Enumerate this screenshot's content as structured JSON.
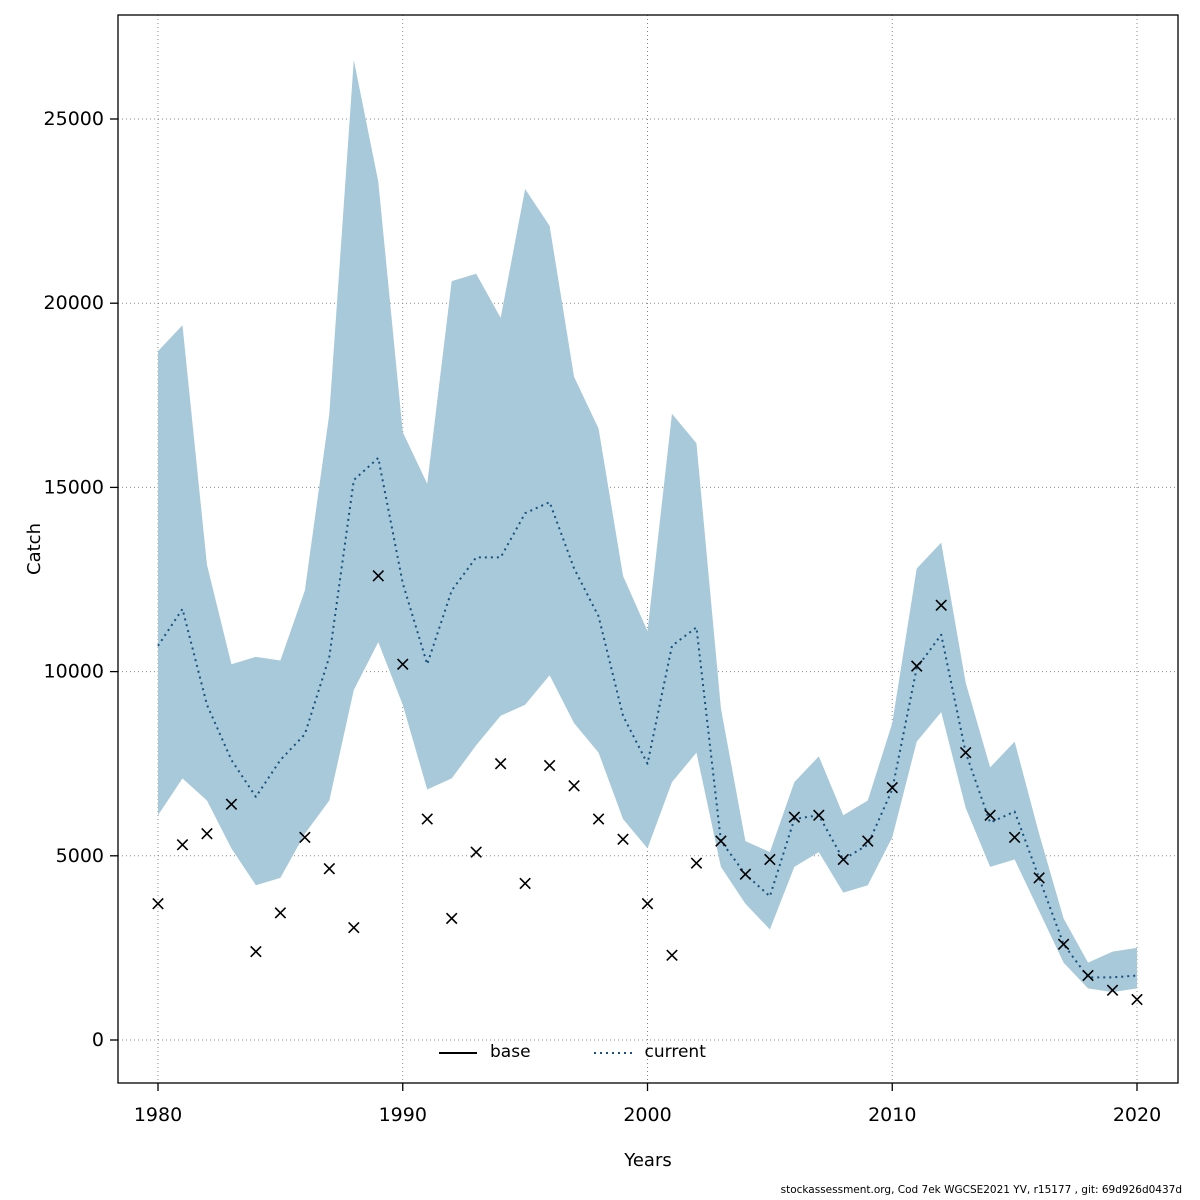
{
  "footer": {
    "text": "stockassessment.org, Cod 7ek WGCSE2021 YV, r15177 , git: 69d926d0437d"
  },
  "chart_data": {
    "type": "line",
    "title": "",
    "xlabel": "Years",
    "ylabel": "Catch",
    "xlim": [
      1978.4,
      2021.7
    ],
    "ylim": [
      -1150,
      27800
    ],
    "grid": "dotted",
    "legend_position": "bottom-center-inside",
    "x_ticks": [
      1980,
      1990,
      2000,
      2010,
      2020
    ],
    "y_ticks": [
      0,
      5000,
      10000,
      15000,
      20000,
      25000
    ],
    "colors": {
      "band": "#a7c9da",
      "current_line": "#16527f",
      "base_line": "#000000",
      "grid": "#8a8a8a",
      "marker": "#000000",
      "frame": "#000000"
    },
    "legend": [
      {
        "label": "base",
        "style": "solid",
        "color": "#000000"
      },
      {
        "label": "current",
        "style": "dotted",
        "color": "#16527f"
      }
    ],
    "years": [
      1980,
      1981,
      1982,
      1983,
      1984,
      1985,
      1986,
      1987,
      1988,
      1989,
      1990,
      1991,
      1992,
      1993,
      1994,
      1995,
      1996,
      1997,
      1998,
      1999,
      2000,
      2001,
      2002,
      2003,
      2004,
      2005,
      2006,
      2007,
      2008,
      2009,
      2010,
      2011,
      2012,
      2013,
      2014,
      2015,
      2016,
      2017,
      2018,
      2019,
      2020
    ],
    "series": [
      {
        "name": "current",
        "style": "dotted",
        "values": [
          10700,
          11700,
          9100,
          7600,
          6600,
          7600,
          8300,
          10400,
          15200,
          15800,
          12400,
          10200,
          12200,
          13100,
          13100,
          14300,
          14600,
          12800,
          11500,
          8800,
          7500,
          10700,
          11200,
          5400,
          4500,
          3900,
          6000,
          6100,
          4900,
          5300,
          6800,
          10100,
          11000,
          7800,
          5900,
          6200,
          4400,
          2600,
          1700,
          1700,
          1750
        ]
      }
    ],
    "band": {
      "name": "current-confidence-interval",
      "lower": [
        6100,
        7100,
        6500,
        5200,
        4200,
        4400,
        5600,
        6500,
        9500,
        10800,
        9100,
        6800,
        7100,
        8000,
        8800,
        9100,
        9900,
        8600,
        7800,
        6000,
        5200,
        7000,
        7800,
        4700,
        3700,
        3000,
        4700,
        5100,
        4000,
        4200,
        5500,
        8100,
        8900,
        6300,
        4700,
        4900,
        3500,
        2100,
        1400,
        1300,
        1400
      ],
      "upper": [
        18700,
        19400,
        12900,
        10200,
        10400,
        10300,
        12200,
        17000,
        26600,
        23300,
        16500,
        15100,
        20600,
        20800,
        19600,
        23100,
        22100,
        18000,
        16600,
        12600,
        11100,
        17000,
        16200,
        9000,
        5400,
        5100,
        7000,
        7700,
        6100,
        6500,
        8600,
        12800,
        13500,
        9700,
        7400,
        8100,
        5600,
        3300,
        2100,
        2400,
        2500
      ]
    },
    "observations": {
      "name": "observed-catch",
      "marker": "x",
      "values": [
        3700,
        5300,
        5600,
        6400,
        2400,
        3450,
        5500,
        4650,
        3050,
        12600,
        10200,
        6000,
        3300,
        5100,
        7500,
        4250,
        7450,
        6900,
        6000,
        5450,
        3700,
        2300,
        4800,
        5400,
        4500,
        4900,
        6050,
        6100,
        4900,
        5400,
        6850,
        10150,
        11800,
        7800,
        6100,
        5500,
        4400,
        2600,
        1750,
        1350,
        1100
      ]
    }
  }
}
